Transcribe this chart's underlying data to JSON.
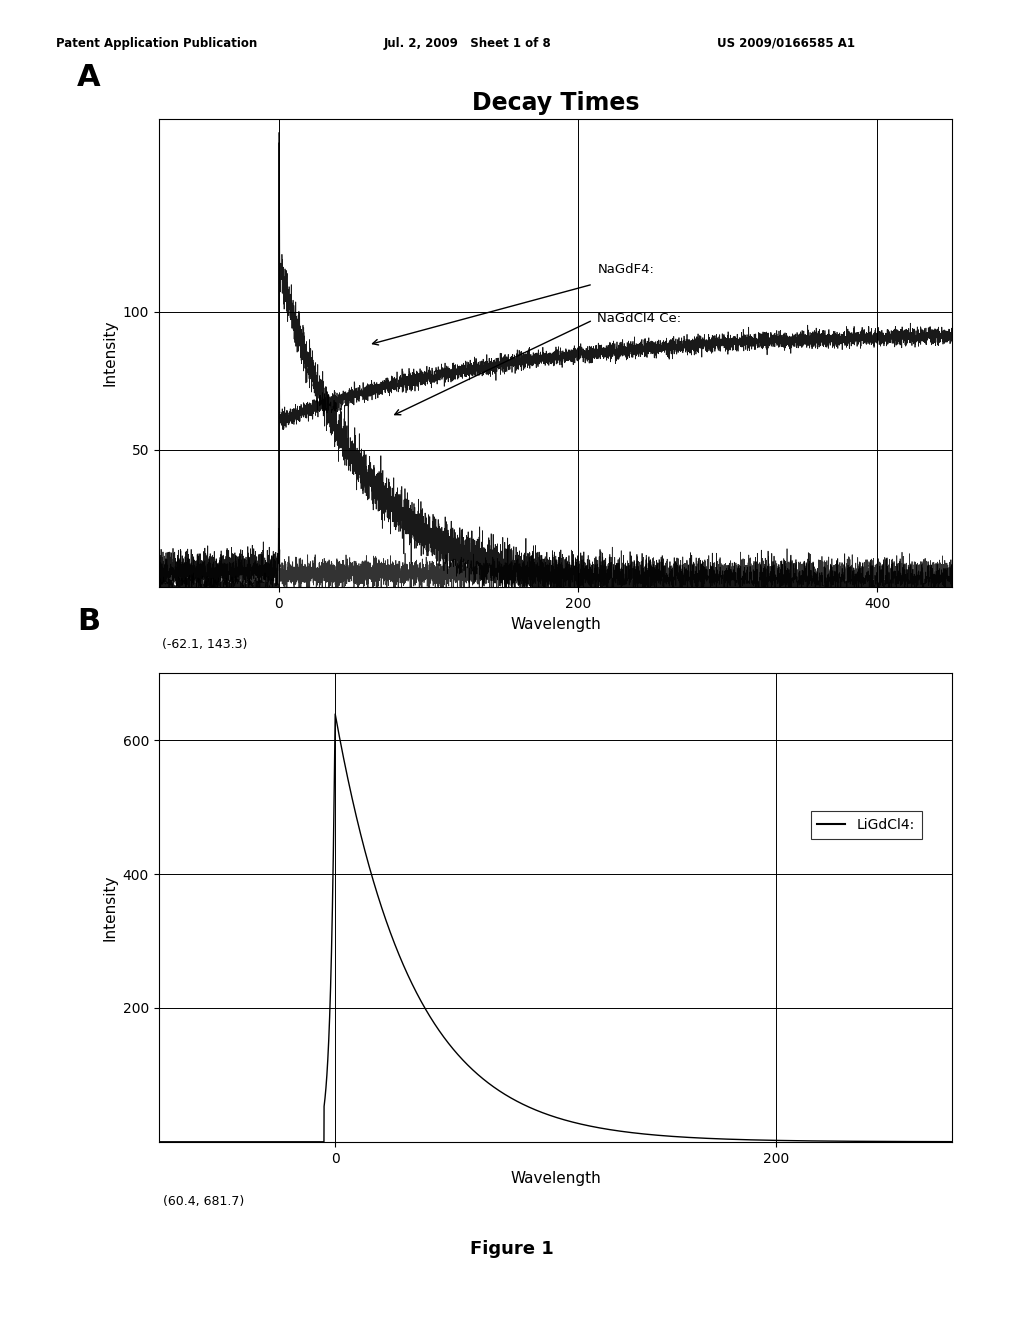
{
  "header_left": "Patent Application Publication",
  "header_mid": "Jul. 2, 2009   Sheet 1 of 8",
  "header_right": "US 2009/0166585 A1",
  "figure_label": "Figure 1",
  "panel_A_label": "A",
  "panel_B_label": "B",
  "panel_A_title": "Decay Times",
  "panel_A_xlabel": "Wavelength",
  "panel_A_ylabel": "Intensity",
  "panel_A_xlim": [
    -80,
    450
  ],
  "panel_A_ylim": [
    0,
    170
  ],
  "panel_A_xticks": [
    0,
    200,
    400
  ],
  "panel_A_yticks": [
    50,
    100
  ],
  "panel_A_annotation": "(-62.1, 143.3)",
  "panel_A_legend_nagdf4": "NaGdF4:",
  "panel_A_legend_nagdcl4": "NaGdCl4 Ce:",
  "panel_B_xlabel": "Wavelength",
  "panel_B_ylabel": "Intensity",
  "panel_B_xlim": [
    -80,
    280
  ],
  "panel_B_ylim": [
    0,
    700
  ],
  "panel_B_xticks": [
    0,
    200
  ],
  "panel_B_yticks": [
    200,
    400,
    600
  ],
  "panel_B_annotation": "(60.4, 681.7)",
  "panel_B_legend": "LiGdCl4:",
  "background_color": "#ffffff",
  "line_color": "#000000"
}
